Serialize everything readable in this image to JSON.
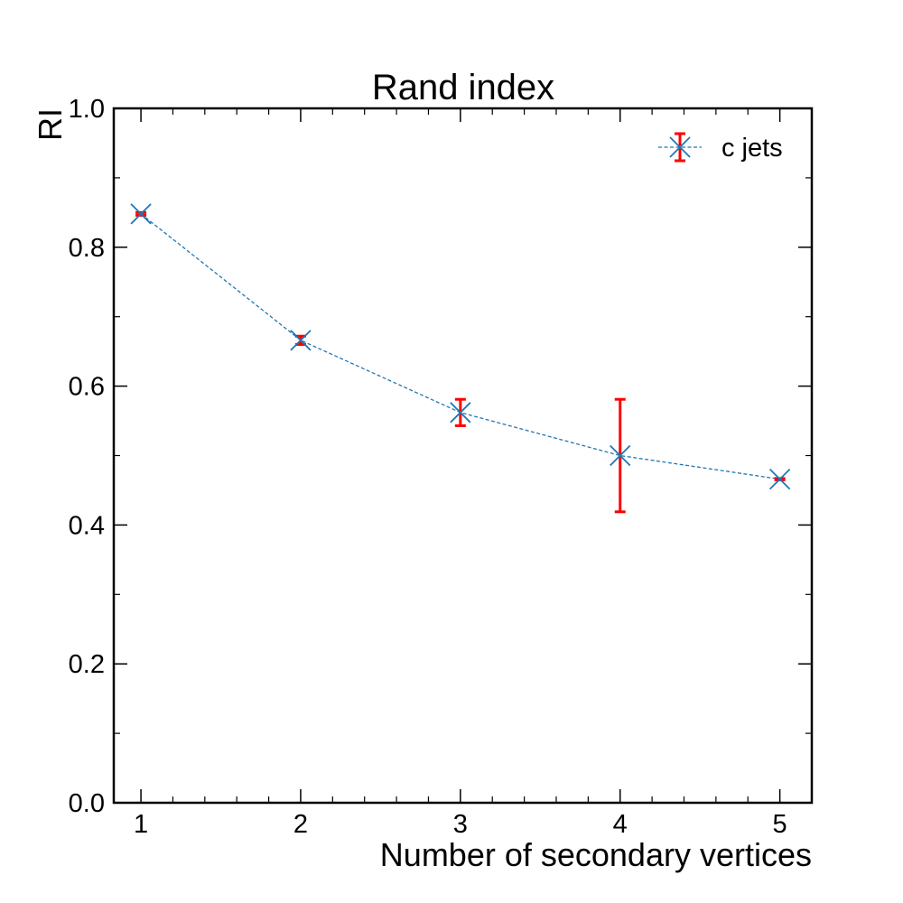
{
  "chart_data": {
    "type": "line",
    "title": "Rand index",
    "xlabel": "Number of secondary vertices",
    "ylabel": "RI",
    "xlim": [
      0.83,
      5.2
    ],
    "ylim": [
      0.0,
      1.0
    ],
    "x_ticks": [
      1,
      2,
      3,
      4,
      5
    ],
    "y_ticks": [
      0.0,
      0.2,
      0.4,
      0.6,
      0.8,
      1.0
    ],
    "x_tick_labels": [
      "1",
      "2",
      "3",
      "4",
      "5"
    ],
    "y_tick_labels": [
      "0.0",
      "0.2",
      "0.4",
      "0.6",
      "0.8",
      "1.0"
    ],
    "grid": false,
    "legend_position": "top-right",
    "series": [
      {
        "name": "c jets",
        "x": [
          1,
          2,
          3,
          4,
          5
        ],
        "y": [
          0.848,
          0.666,
          0.562,
          0.5,
          0.466
        ],
        "yerr": [
          0.002,
          0.006,
          0.019,
          0.081,
          0.001
        ],
        "line_color": "#1f77b4",
        "error_color": "#ff0000",
        "marker": "x",
        "line_style": "dashed"
      }
    ]
  }
}
